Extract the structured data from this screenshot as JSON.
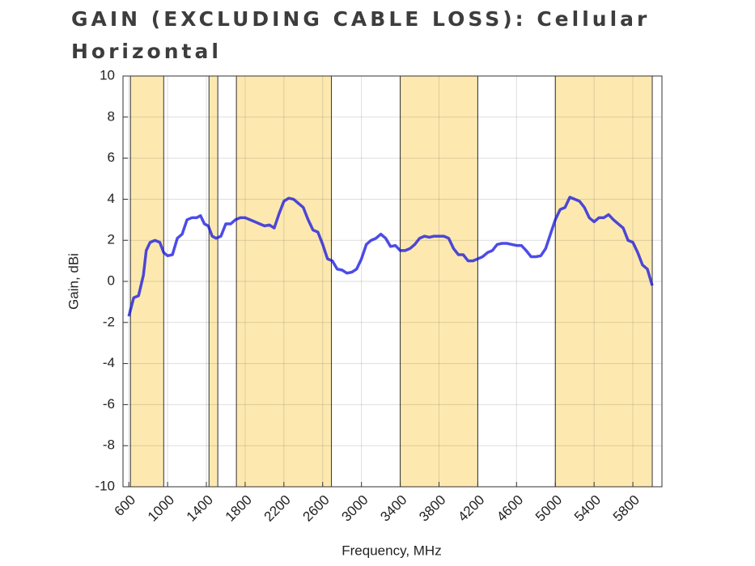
{
  "chart_data": {
    "type": "line",
    "title": "GAIN (EXCLUDING CABLE LOSS): Cellular Horizontal",
    "x_label": "Frequency, MHz",
    "y_label": "Gain, dBi",
    "x": [
      600,
      650,
      700,
      750,
      780,
      820,
      870,
      920,
      960,
      1000,
      1050,
      1100,
      1150,
      1200,
      1250,
      1300,
      1340,
      1380,
      1420,
      1460,
      1500,
      1550,
      1600,
      1650,
      1700,
      1750,
      1800,
      1850,
      1900,
      1950,
      2000,
      2050,
      2100,
      2150,
      2200,
      2250,
      2300,
      2350,
      2400,
      2450,
      2500,
      2550,
      2600,
      2650,
      2700,
      2750,
      2800,
      2850,
      2900,
      2950,
      3000,
      3050,
      3100,
      3150,
      3200,
      3250,
      3300,
      3350,
      3400,
      3450,
      3500,
      3550,
      3600,
      3650,
      3700,
      3750,
      3800,
      3850,
      3900,
      3950,
      4000,
      4050,
      4100,
      4150,
      4200,
      4250,
      4300,
      4350,
      4400,
      4450,
      4500,
      4550,
      4600,
      4650,
      4700,
      4750,
      4800,
      4850,
      4900,
      4950,
      5000,
      5050,
      5100,
      5150,
      5200,
      5250,
      5300,
      5350,
      5400,
      5450,
      5500,
      5550,
      5600,
      5650,
      5700,
      5750,
      5800,
      5850,
      5900,
      5950,
      6000
    ],
    "values": [
      -1.7,
      -0.8,
      -0.7,
      0.3,
      1.5,
      1.9,
      2.0,
      1.9,
      1.4,
      1.25,
      1.3,
      2.1,
      2.3,
      3.0,
      3.1,
      3.1,
      3.2,
      2.8,
      2.7,
      2.2,
      2.1,
      2.2,
      2.8,
      2.8,
      3.0,
      3.1,
      3.1,
      3.0,
      2.9,
      2.8,
      2.7,
      2.75,
      2.6,
      3.3,
      3.9,
      4.05,
      4.0,
      3.8,
      3.6,
      3.0,
      2.5,
      2.4,
      1.8,
      1.1,
      1.0,
      0.6,
      0.55,
      0.4,
      0.45,
      0.6,
      1.1,
      1.8,
      2.0,
      2.1,
      2.3,
      2.1,
      1.7,
      1.75,
      1.5,
      1.5,
      1.6,
      1.8,
      2.1,
      2.2,
      2.15,
      2.2,
      2.2,
      2.2,
      2.1,
      1.6,
      1.3,
      1.3,
      1.0,
      1.0,
      1.1,
      1.2,
      1.4,
      1.5,
      1.8,
      1.85,
      1.85,
      1.8,
      1.75,
      1.75,
      1.5,
      1.2,
      1.2,
      1.25,
      1.6,
      2.3,
      3.0,
      3.5,
      3.6,
      4.1,
      4.0,
      3.9,
      3.6,
      3.1,
      2.9,
      3.1,
      3.1,
      3.25,
      3.0,
      2.8,
      2.6,
      2.0,
      1.9,
      1.4,
      0.8,
      0.6,
      -0.2
    ],
    "color": "#1010e0",
    "bands": [
      [
        617,
        960
      ],
      [
        1427,
        1518
      ],
      [
        1710,
        2690
      ],
      [
        3400,
        4200
      ],
      [
        5000,
        6000
      ]
    ],
    "band_color": "#fde9b0",
    "xlim": [
      540,
      6100
    ],
    "ylim": [
      -10,
      10
    ],
    "xticks": [
      600,
      1000,
      1400,
      1800,
      2200,
      2600,
      3000,
      3400,
      3800,
      4200,
      4600,
      5000,
      5400,
      5800
    ],
    "yticks": [
      -10,
      -8,
      -6,
      -4,
      -2,
      0,
      2,
      4,
      6,
      8,
      10
    ],
    "grid": true
  }
}
